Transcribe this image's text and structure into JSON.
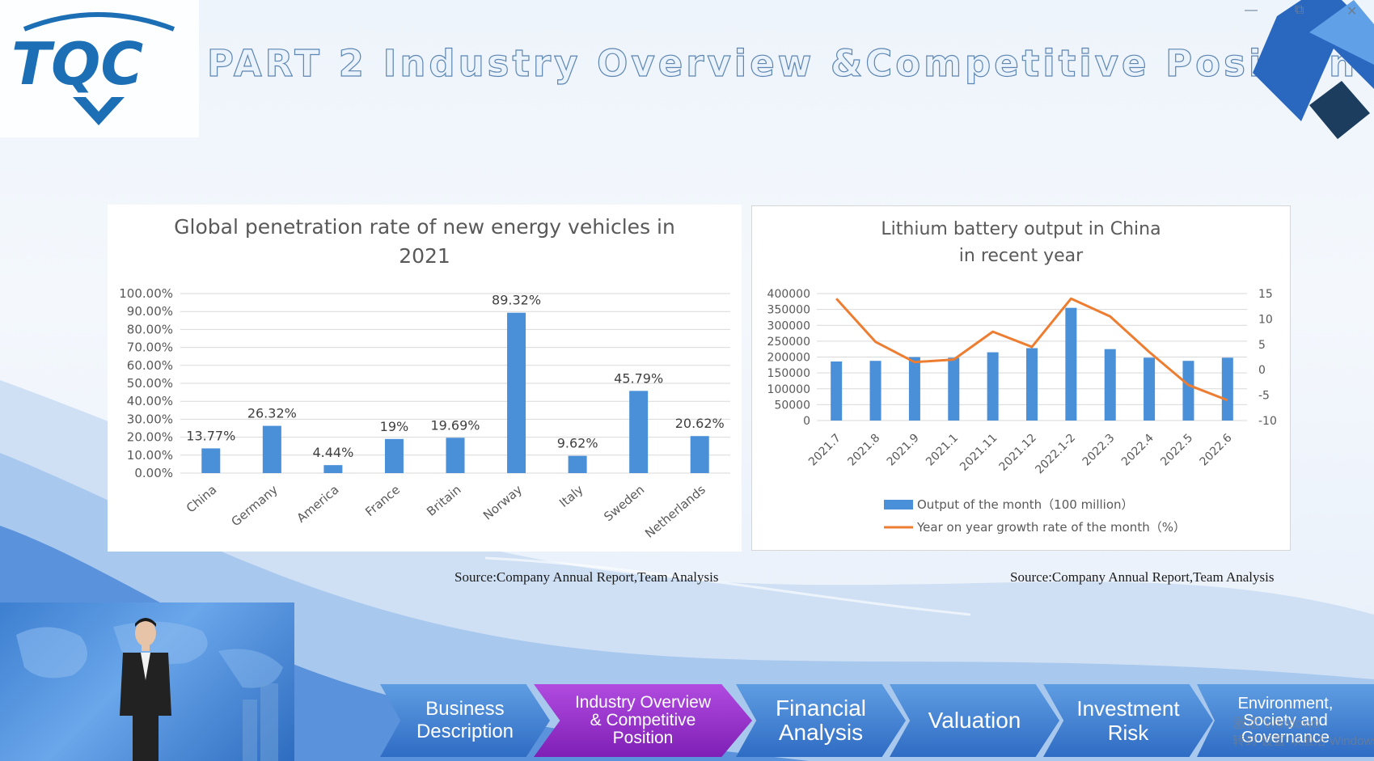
{
  "header": {
    "logo_text": "TQC",
    "title": "PART 2 Industry Overview &Competitive Position"
  },
  "window_controls": {
    "minimize": "—",
    "restore": "⧉",
    "close": "✕"
  },
  "charts": {
    "left": {
      "title_line1": "Global penetration rate of new energy vehicles in",
      "title_line2": "2021",
      "source": "Source:Company Annual Report,Team  Analysis"
    },
    "right": {
      "title_line1": "Lithium battery output in China",
      "title_line2": "in recent year",
      "source": "Source:Company Annual Report,Team  Analysis"
    }
  },
  "chart_data": [
    {
      "type": "bar",
      "title": "Global penetration rate of new energy vehicles in 2021",
      "categories": [
        "China",
        "Germany",
        "America",
        "France",
        "Britain",
        "Norway",
        "Italy",
        "Sweden",
        "Netherlands"
      ],
      "values": [
        13.77,
        26.32,
        4.44,
        19,
        19.69,
        89.32,
        9.62,
        45.79,
        20.62
      ],
      "data_labels": [
        "13.77%",
        "26.32%",
        "4.44%",
        "19%",
        "19.69%",
        "89.32%",
        "9.62%",
        "45.79%",
        "20.62%"
      ],
      "ylim": [
        0,
        100
      ],
      "yticks": [
        "0.00%",
        "10.00%",
        "20.00%",
        "30.00%",
        "40.00%",
        "50.00%",
        "60.00%",
        "70.00%",
        "80.00%",
        "90.00%",
        "100.00%"
      ],
      "grid": true,
      "bar_color": "#4a90d9"
    },
    {
      "type": "bar+line",
      "title": "Lithium battery output in China in recent year",
      "categories": [
        "2021.7",
        "2021.8",
        "2021.9",
        "2021.1",
        "2021.11",
        "2021.12",
        "2022.1-2",
        "2022.3",
        "2022.4",
        "2022.5",
        "2022.6"
      ],
      "series": [
        {
          "name": "Output of the month（100 million）",
          "type": "bar",
          "axis": "left",
          "values": [
            186000,
            188000,
            200000,
            198000,
            215000,
            228000,
            355000,
            225000,
            198000,
            188000,
            198000
          ],
          "color": "#4a90d9"
        },
        {
          "name": "Year on year growth rate of the month（%）",
          "type": "line",
          "axis": "right",
          "values": [
            14,
            5.5,
            1.5,
            2,
            7.5,
            4.5,
            14,
            10.5,
            3.5,
            -3,
            -6
          ],
          "color": "#ed7d31"
        }
      ],
      "ylim_left": [
        0,
        400000
      ],
      "yticks_left": [
        "0",
        "50000",
        "100000",
        "150000",
        "200000",
        "250000",
        "300000",
        "350000",
        "400000"
      ],
      "ylim_right": [
        -10,
        15
      ],
      "yticks_right": [
        "-10",
        "-5",
        "0",
        "5",
        "10",
        "15"
      ],
      "legend": "bottom"
    }
  ],
  "nav": [
    {
      "label": "Business\nDescription",
      "active": false
    },
    {
      "label": "Industry  Overview\n& Competitive\nPosition",
      "active": true
    },
    {
      "label": "Financial\nAnalysis",
      "active": false
    },
    {
      "label": "Valuation",
      "active": false
    },
    {
      "label": "Investment\nRisk",
      "active": false
    },
    {
      "label": "Environment,\nSociety and\nGovernance",
      "active": false
    }
  ],
  "watermark": {
    "line1": "激活 Windows",
    "line2": "转到\"设置\"以激活 Windows"
  }
}
